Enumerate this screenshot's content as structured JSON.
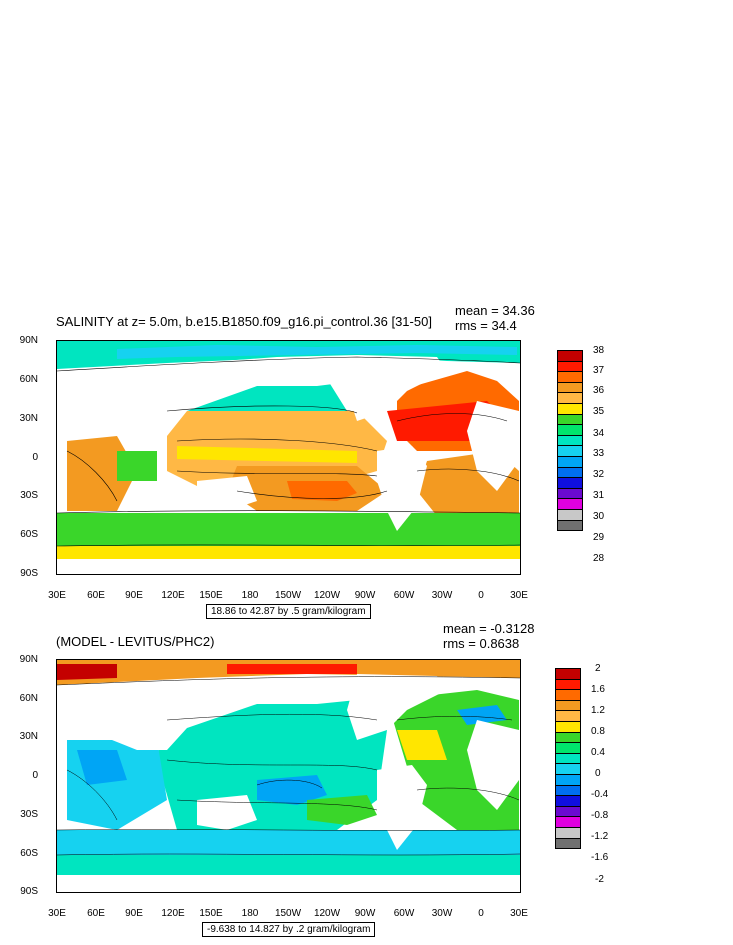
{
  "top": {
    "title": "SALINITY at z=   5.0m, b.e15.B1850.f09_g16.pi_control.36 [31-50]",
    "mean": "mean = 34.36",
    "rms": "rms = 34.4",
    "range_note": "18.86 to 42.87 by .5 gram/kilogram",
    "colorbar_labels": [
      "38",
      "37",
      "36",
      "35",
      "34",
      "33",
      "32",
      "31",
      "30",
      "29",
      "28"
    ],
    "colorbar_colors": [
      "#c40000",
      "#ff1a00",
      "#ff6a00",
      "#f39a21",
      "#ffb845",
      "#ffe600",
      "#3ad62a",
      "#00e56c",
      "#00e5c0",
      "#16d2f0",
      "#00a5f5",
      "#006ef0",
      "#0f0fe0",
      "#6a0ad0",
      "#e000e0",
      "#c8c8c8",
      "#707070"
    ]
  },
  "bottom": {
    "title": "(MODEL - LEVITUS/PHC2)",
    "mean": "mean = -0.3128",
    "rms": "rms = 0.8638",
    "range_note": "-9.638 to 14.827 by .2 gram/kilogram",
    "colorbar_labels": [
      "2",
      "1.6",
      "1.2",
      "0.8",
      "0.4",
      "0",
      "-0.4",
      "-0.8",
      "-1.2",
      "-1.6",
      "-2"
    ],
    "colorbar_colors": [
      "#c40000",
      "#ff1a00",
      "#ff6a00",
      "#f39a21",
      "#ffb845",
      "#ffe600",
      "#3ad62a",
      "#00e56c",
      "#00e5c0",
      "#16d2f0",
      "#00a5f5",
      "#006ef0",
      "#0f0fe0",
      "#6a0ad0",
      "#e000e0",
      "#c8c8c8",
      "#707070"
    ]
  },
  "axes": {
    "lat_labels": [
      "90N",
      "60N",
      "30N",
      "0",
      "30S",
      "60S",
      "90S"
    ],
    "lon_labels": [
      "30E",
      "60E",
      "90E",
      "120E",
      "150E",
      "180",
      "150W",
      "120W",
      "90W",
      "60W",
      "30W",
      "0",
      "30E"
    ]
  },
  "map_fields": {
    "top_bands": [
      {
        "name": "arctic",
        "color": "#00e5c0"
      },
      {
        "name": "north-pacific",
        "color": "#00e5c0"
      },
      {
        "name": "north-atlantic",
        "color": "#ff6a00"
      },
      {
        "name": "subtropical-atlantic",
        "color": "#ff1a00"
      },
      {
        "name": "tropical-pacific",
        "color": "#ffb845"
      },
      {
        "name": "south-pacific-gyre",
        "color": "#f39a21"
      },
      {
        "name": "southern-ocean",
        "color": "#3ad62a"
      },
      {
        "name": "antarctic",
        "color": "#ffe600"
      }
    ],
    "bottom_bands": [
      {
        "name": "arctic",
        "color": "#f39a21"
      },
      {
        "name": "pacific",
        "color": "#00e5c0"
      },
      {
        "name": "atlantic",
        "color": "#3ad62a"
      },
      {
        "name": "southern-ocean",
        "color": "#16d2f0"
      }
    ]
  }
}
